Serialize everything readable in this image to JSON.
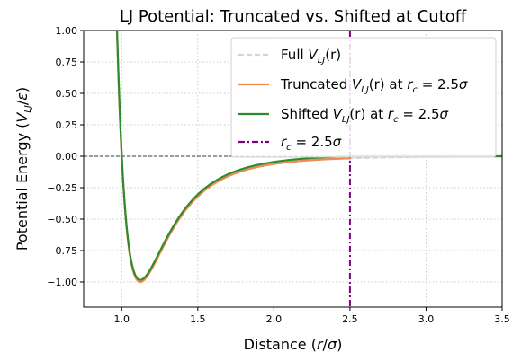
{
  "chart_data": {
    "type": "line",
    "title": "LJ Potential: Truncated vs. Shifted at Cutoff",
    "xlabel": {
      "prefix": "Distance (",
      "var": "r",
      "sep": "/",
      "unit": "σ",
      "suffix": ")"
    },
    "ylabel": "Potential Energy (V_LJ/ε)",
    "xlim": [
      0.75,
      3.5
    ],
    "ylim": [
      -1.2,
      1.0
    ],
    "xticks": [
      1.0,
      1.5,
      2.0,
      2.5,
      3.0,
      3.5
    ],
    "xtick_labels": [
      "1.0",
      "1.5",
      "2.0",
      "2.5",
      "3.0",
      "3.5"
    ],
    "yticks": [
      -1.0,
      -0.75,
      -0.5,
      -0.25,
      0.0,
      0.25,
      0.5,
      0.75,
      1.0
    ],
    "ytick_labels": [
      "−1.00",
      "−0.75",
      "−0.50",
      "−0.25",
      "0.00",
      "0.25",
      "0.50",
      "0.75",
      "1.00"
    ],
    "grid": true,
    "legend_position": "top-right",
    "cutoff": 2.5,
    "series": [
      {
        "name": "Full V_LJ(r)",
        "legend": {
          "main": "Full ",
          "var": "V",
          "sub": "LJ",
          "args": "(r)",
          "tail": ""
        },
        "color": "#d3d3d3",
        "style": "dashed",
        "function": "lj",
        "range": [
          0.75,
          3.5
        ]
      },
      {
        "name": "Truncated V_LJ(r) at r_c = 2.5σ",
        "legend": {
          "main": "Truncated ",
          "var": "V",
          "sub": "LJ",
          "args": "(r)",
          "tail": " at r_c = 2.5σ"
        },
        "color": "#f28a4f",
        "style": "solid",
        "function": "lj_truncated",
        "range": [
          0.75,
          3.5
        ]
      },
      {
        "name": "Shifted V_LJ(r) at r_c = 2.5σ",
        "legend": {
          "main": "Shifted ",
          "var": "V",
          "sub": "LJ",
          "args": "(r)",
          "tail": " at r_c = 2.5σ"
        },
        "color": "#2e8b2e",
        "style": "solid",
        "function": "lj_shifted",
        "range": [
          0.75,
          3.5
        ]
      },
      {
        "name": "r_c = 2.5σ",
        "legend": {
          "main": "",
          "var": "r",
          "sub": "c",
          "args": "",
          "tail": " = 2.5σ"
        },
        "color": "#800080",
        "style": "dashdot",
        "function": "vline",
        "x": 2.5
      }
    ],
    "zero_line": {
      "y": 0.0,
      "color": "#000000",
      "style": "dashed"
    }
  }
}
